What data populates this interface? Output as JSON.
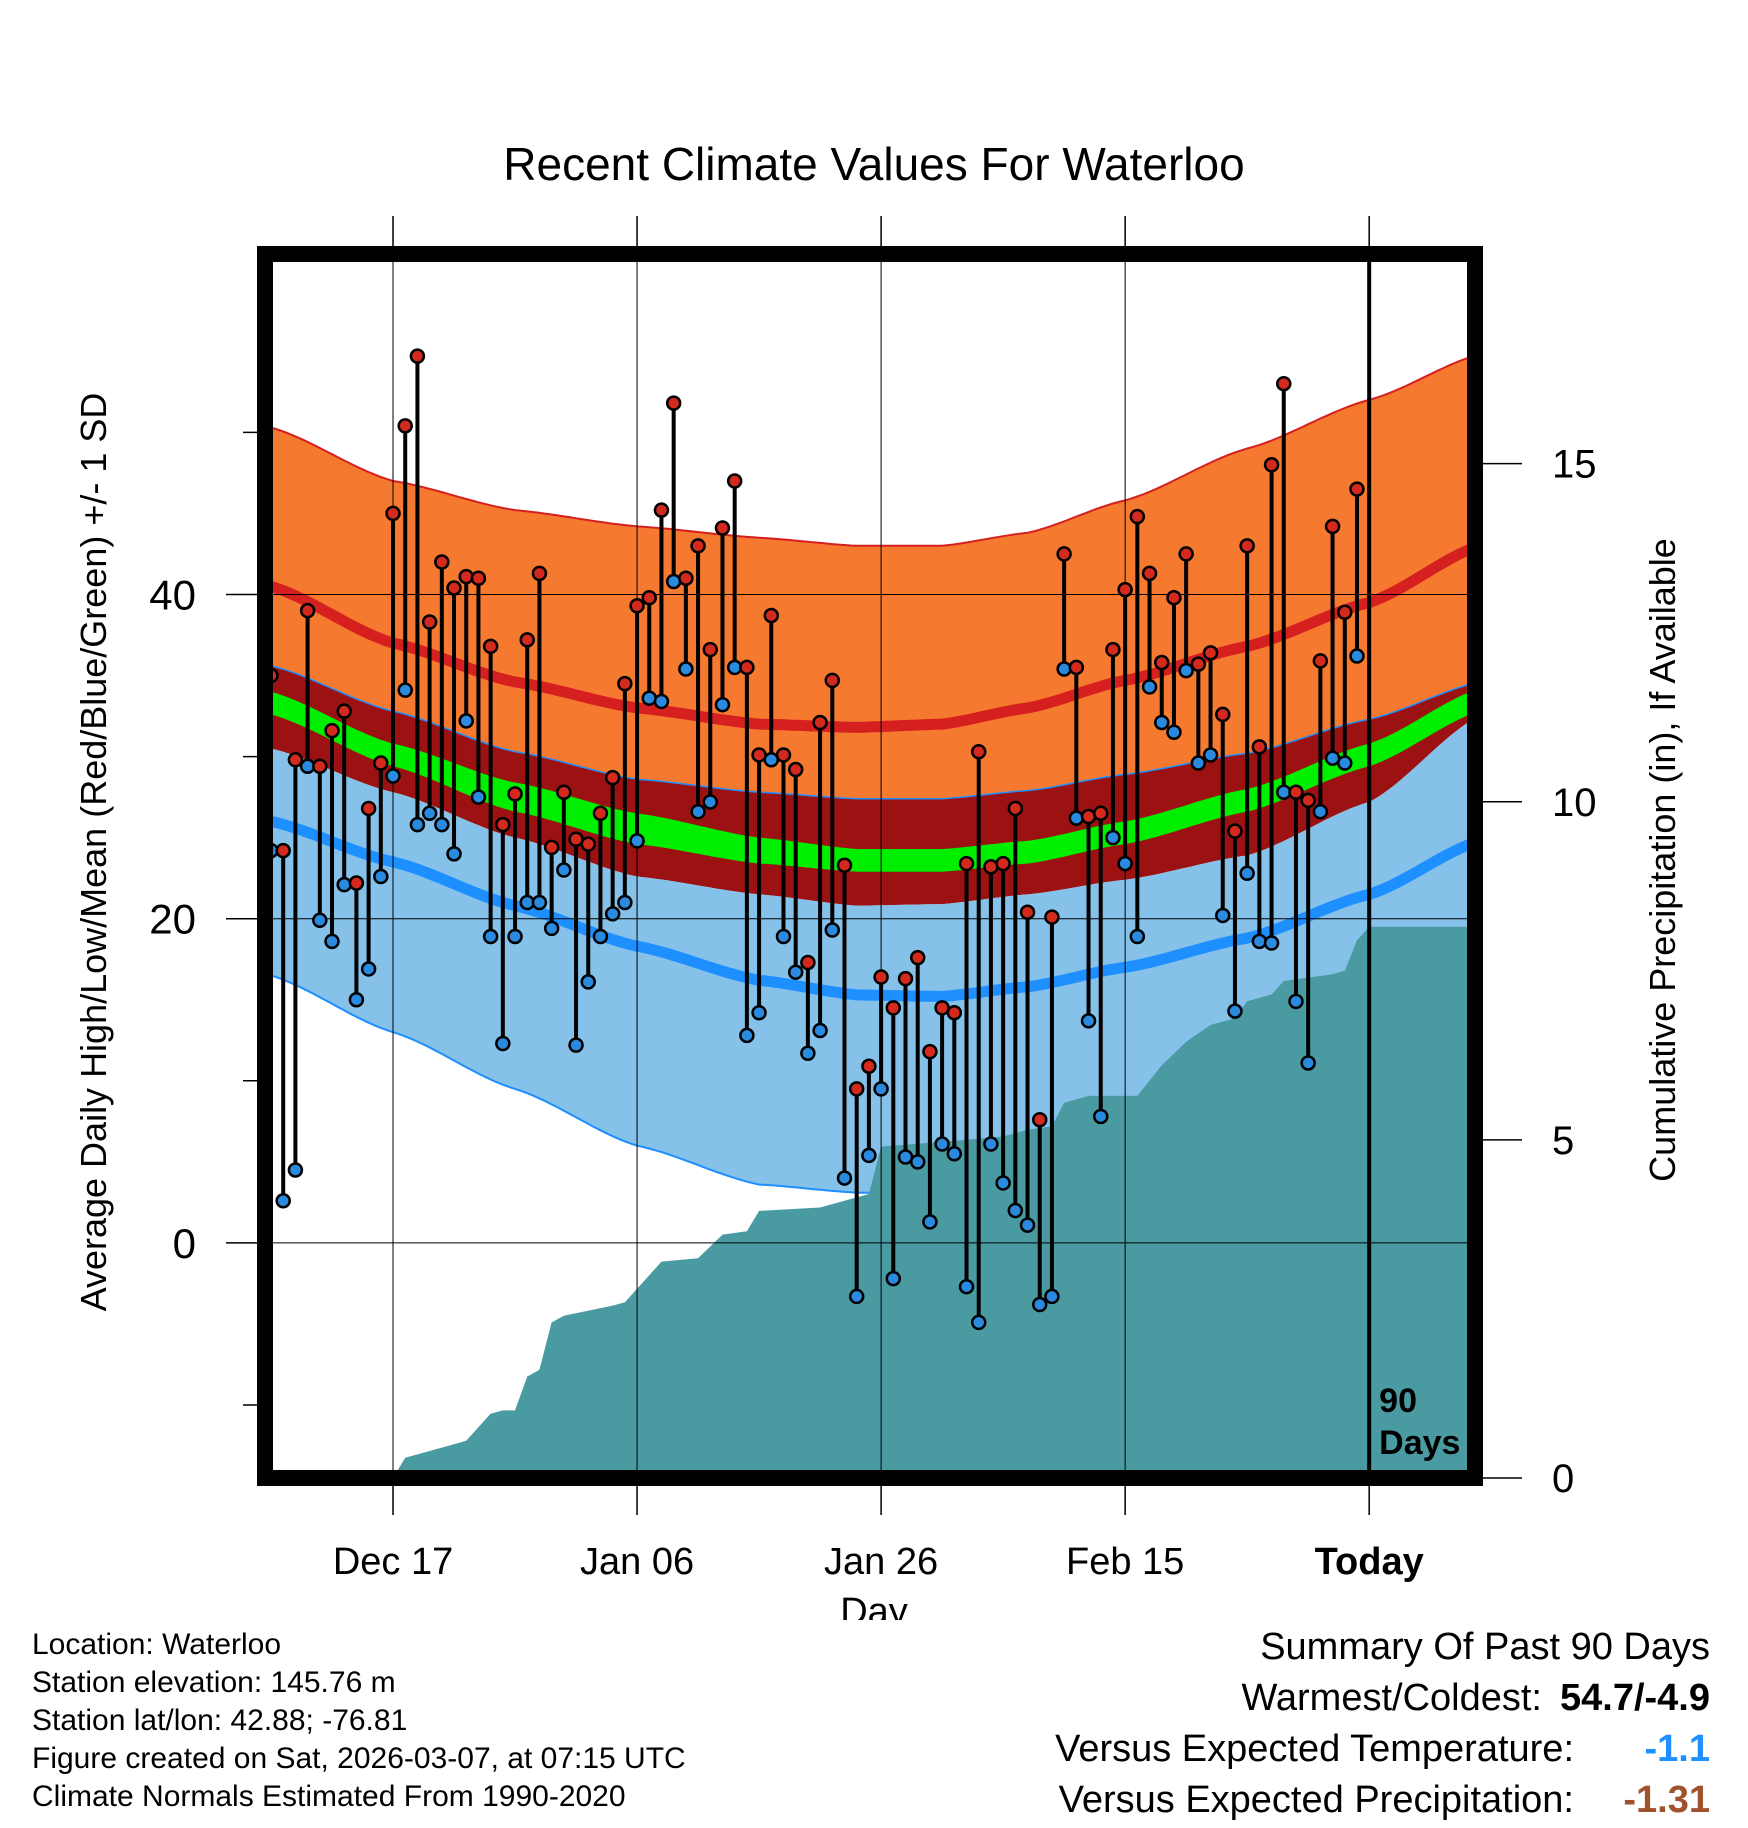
{
  "title": "Recent Climate Values For Waterloo",
  "y_axis_label": "Average Daily High/Low/Mean (Red/Blue/Green) +/- 1 SD",
  "y2_axis_label": "Cumulative Precipitation (in), If Available",
  "x_axis_label": "Day",
  "marker_label": "90 Days",
  "info": {
    "location": "Location: Waterloo",
    "elevation": "Station elevation: 145.76 m",
    "latlon": "Station lat/lon: 42.88; -76.81",
    "created": "Figure created on Sat, 2026-03-07, at 07:15 UTC",
    "normals": "Climate Normals Estimated From 1990-2020"
  },
  "summary": {
    "heading": "Summary Of Past 90 Days",
    "warm_cold_label": "Warmest/Coldest:",
    "warm_cold_value": "54.7/-4.9",
    "temp_label": "Versus Expected Temperature:",
    "temp_value": "-1.1",
    "precip_label": "Versus Expected Precipitation:",
    "precip_value": "-1.31",
    "colors": {
      "temp": "#1e90ff",
      "precip": "#a0522d"
    }
  },
  "colors": {
    "high_band": "#f57a30",
    "high_normal": "#d62020",
    "mean_band": "#9c1212",
    "mean_normal": "#00ee00",
    "low_band": "#85c1e9",
    "low_normal": "#1e8fff",
    "precip_fill": "#4a9aa2",
    "high_marker": "#d42a1e",
    "low_marker": "#2a8ae0"
  },
  "chart_data": {
    "type": "line",
    "x_domain": [
      0,
      99
    ],
    "today_index": 90,
    "x_ticks": [
      {
        "label": "Dec 17",
        "day": 10
      },
      {
        "label": "Jan 06",
        "day": 30
      },
      {
        "label": "Jan 26",
        "day": 50
      },
      {
        "label": "Feb 15",
        "day": 70
      },
      {
        "label": "Today",
        "day": 90
      }
    ],
    "y_range": [
      -14.5,
      61
    ],
    "y_ticks": [
      0,
      20,
      40
    ],
    "y_minor_ticks": [
      -10,
      10,
      30,
      50
    ],
    "y2_range": [
      0,
      18.1
    ],
    "y2_ticks": [
      0,
      5,
      10,
      15
    ],
    "normal_knots": {
      "day": [
        0,
        10,
        20,
        30,
        40,
        48,
        55,
        62,
        70,
        80,
        90,
        99
      ],
      "high_plus": [
        50.3,
        47.0,
        45.2,
        44.2,
        43.5,
        43.0,
        43.0,
        43.8,
        45.8,
        49.0,
        52.0,
        54.8
      ],
      "high": [
        40.5,
        37.0,
        34.6,
        33.0,
        32.0,
        31.8,
        32.0,
        33.0,
        34.7,
        36.8,
        39.5,
        43.0
      ],
      "mean_plus": [
        35.6,
        32.8,
        30.3,
        28.6,
        27.8,
        27.4,
        27.4,
        27.9,
        28.9,
        30.2,
        32.3,
        34.6
      ],
      "mean_hi": [
        34.0,
        30.8,
        28.4,
        26.5,
        25.0,
        24.3,
        24.3,
        24.8,
        26.0,
        28.0,
        30.8,
        34.2
      ],
      "mean_lo": [
        32.6,
        29.4,
        26.6,
        24.6,
        23.4,
        22.9,
        22.9,
        23.4,
        24.6,
        26.6,
        29.4,
        32.8
      ],
      "mean_minus": [
        30.5,
        27.8,
        25.0,
        22.6,
        21.5,
        20.8,
        20.9,
        21.5,
        22.4,
        23.9,
        27.2,
        32.5
      ],
      "low": [
        26.0,
        23.5,
        20.8,
        18.3,
        16.2,
        15.3,
        15.2,
        15.8,
        17.0,
        18.8,
        21.5,
        24.8
      ],
      "low_minus": [
        16.5,
        13.0,
        9.5,
        6.0,
        3.6,
        3.1,
        3.1,
        4.0,
        5.8,
        7.9,
        10.8,
        14.8
      ]
    },
    "series": [
      {
        "name": "High",
        "values": [
          35.0,
          24.2,
          29.8,
          39.0,
          29.4,
          31.6,
          32.8,
          22.2,
          26.8,
          29.6,
          45.0,
          50.4,
          54.7,
          38.3,
          42.0,
          40.4,
          41.1,
          41.0,
          36.8,
          25.8,
          27.7,
          37.2,
          41.3,
          24.4,
          27.8,
          24.9,
          24.6,
          26.5,
          28.7,
          34.5,
          39.3,
          39.8,
          45.2,
          51.8,
          41.0,
          43.0,
          36.6,
          44.1,
          47.0,
          35.5,
          30.1,
          38.7,
          30.1,
          29.2,
          17.3,
          32.1,
          34.7,
          23.3,
          9.5,
          10.9,
          16.4,
          14.5,
          16.3,
          17.6,
          11.8,
          14.5,
          14.2,
          23.4,
          30.3,
          23.2,
          23.4,
          26.8,
          20.4,
          7.6,
          20.1,
          42.5,
          35.5,
          26.3,
          26.5,
          36.6,
          40.3,
          44.8,
          41.3,
          35.8,
          39.8,
          42.5,
          35.7,
          36.4,
          32.6,
          25.4,
          43.0,
          30.6,
          48.0,
          53.0,
          27.8,
          27.3,
          35.9,
          44.2,
          38.9,
          46.5
        ]
      },
      {
        "name": "Low",
        "values": [
          24.2,
          2.6,
          4.5,
          29.4,
          19.9,
          18.6,
          22.1,
          15.0,
          16.9,
          22.6,
          28.8,
          34.1,
          25.8,
          26.5,
          25.8,
          24.0,
          32.2,
          27.5,
          18.9,
          12.3,
          18.9,
          21.0,
          21.0,
          19.4,
          23.0,
          12.2,
          16.1,
          18.9,
          20.3,
          21.0,
          24.8,
          33.6,
          33.4,
          40.8,
          35.4,
          26.6,
          27.2,
          33.2,
          35.5,
          12.8,
          14.2,
          29.8,
          18.9,
          16.7,
          11.7,
          13.1,
          19.3,
          4.0,
          -3.3,
          5.4,
          9.5,
          -2.2,
          5.3,
          5.0,
          1.3,
          6.1,
          5.5,
          -2.7,
          -4.9,
          6.1,
          3.7,
          2.0,
          1.1,
          -3.8,
          -3.3,
          35.4,
          26.2,
          13.7,
          7.8,
          25.0,
          23.4,
          18.9,
          34.3,
          32.1,
          31.5,
          35.3,
          29.6,
          30.1,
          20.2,
          14.3,
          22.8,
          18.6,
          18.5,
          27.8,
          14.9,
          11.1,
          26.6,
          29.9,
          29.6,
          36.2
        ]
      },
      {
        "name": "Cumulative Precipitation",
        "steps": [
          [
            0,
            0
          ],
          [
            10,
            0
          ],
          [
            11,
            0.3
          ],
          [
            15,
            0.5
          ],
          [
            16,
            0.55
          ],
          [
            18,
            0.95
          ],
          [
            19,
            1.0
          ],
          [
            20,
            1.0
          ],
          [
            21,
            1.5
          ],
          [
            22,
            1.6
          ],
          [
            23,
            2.3
          ],
          [
            24,
            2.4
          ],
          [
            28,
            2.55
          ],
          [
            29,
            2.6
          ],
          [
            30,
            2.8
          ],
          [
            32,
            3.2
          ],
          [
            35,
            3.25
          ],
          [
            37,
            3.6
          ],
          [
            39,
            3.65
          ],
          [
            40,
            3.95
          ],
          [
            45,
            4.0
          ],
          [
            47,
            4.1
          ],
          [
            48,
            4.15
          ],
          [
            49,
            4.2
          ],
          [
            50,
            4.9
          ],
          [
            57,
            5.0
          ],
          [
            60,
            5.05
          ],
          [
            62,
            5.15
          ],
          [
            64,
            5.2
          ],
          [
            65,
            5.55
          ],
          [
            67,
            5.65
          ],
          [
            71,
            5.65
          ],
          [
            73,
            6.1
          ],
          [
            75,
            6.45
          ],
          [
            77,
            6.7
          ],
          [
            79,
            6.8
          ],
          [
            80,
            7.05
          ],
          [
            82,
            7.15
          ],
          [
            83,
            7.35
          ],
          [
            85,
            7.4
          ],
          [
            87,
            7.45
          ],
          [
            88,
            7.5
          ],
          [
            89,
            7.95
          ],
          [
            90,
            8.15
          ],
          [
            99,
            8.15
          ]
        ]
      }
    ]
  }
}
